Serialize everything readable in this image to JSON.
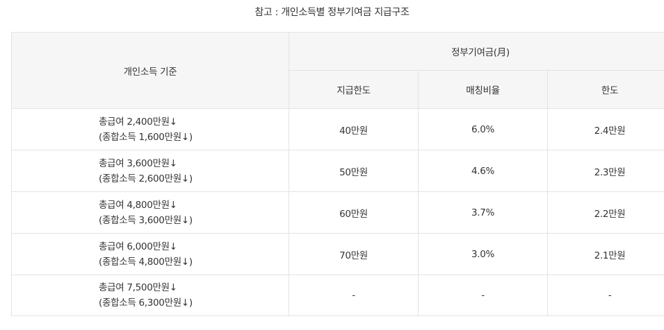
{
  "caption": "참고 : 개인소득별 정부기여금 지급구조",
  "header": {
    "income_basis": "개인소득 기준",
    "gov_contribution": "정부기여금(月)",
    "payout_limit": "지급한도",
    "matching_ratio": "매칭비율",
    "limit": "한도"
  },
  "rows": [
    {
      "gross": "총급여 2,400만원↓",
      "combined": "(종합소득 1,600만원↓)",
      "payout_limit": "40만원",
      "matching_ratio": "6.0%",
      "limit": "2.4만원"
    },
    {
      "gross": "총급여 3,600만원↓",
      "combined": "(종합소득 2,600만원↓)",
      "payout_limit": "50만원",
      "matching_ratio": "4.6%",
      "limit": "2.3만원"
    },
    {
      "gross": "총급여 4,800만원↓",
      "combined": "(종합소득 3,600만원↓)",
      "payout_limit": "60만원",
      "matching_ratio": "3.7%",
      "limit": "2.2만원"
    },
    {
      "gross": "총급여 6,000만원↓",
      "combined": "(종합소득 4,800만원↓)",
      "payout_limit": "70만원",
      "matching_ratio": "3.0%",
      "limit": "2.1만원"
    },
    {
      "gross": "총급여 7,500만원↓",
      "combined": "(종합소득 6,300만원↓)",
      "payout_limit": "-",
      "matching_ratio": "-",
      "limit": "-"
    }
  ]
}
